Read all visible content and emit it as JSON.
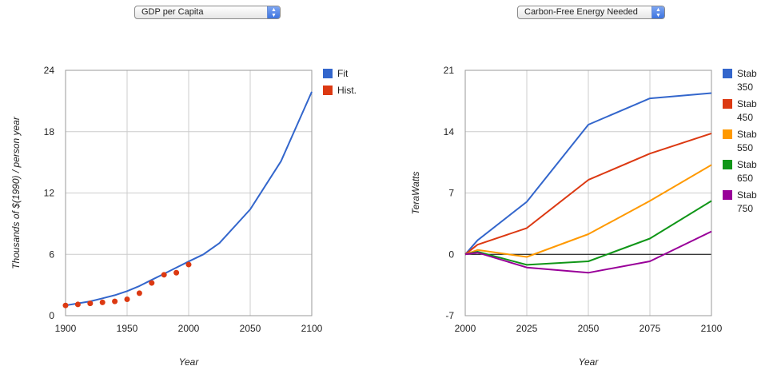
{
  "controls": {
    "left_select": "GDP per Capita",
    "right_select": "Carbon-Free Energy Needed"
  },
  "colors": {
    "blue": "#3366cc",
    "red": "#dc3912",
    "orange": "#ff9900",
    "green": "#109618",
    "purple": "#990099"
  },
  "chart_data": [
    {
      "type": "line",
      "title": "",
      "xlabel": "Year",
      "ylabel": "Thousands of $(1990) / person year",
      "xlim": [
        1900,
        2100
      ],
      "ylim": [
        0,
        24
      ],
      "xticks": [
        "1900",
        "1950",
        "2000",
        "2050",
        "2100"
      ],
      "yticks": [
        "0",
        "6",
        "12",
        "18",
        "24"
      ],
      "grid": true,
      "legend": "right",
      "series": [
        {
          "name": "Fit",
          "style": "line",
          "color": "#3366cc",
          "points": [
            [
              1900,
              1.0
            ],
            [
              1910,
              1.2
            ],
            [
              1920,
              1.4
            ],
            [
              1930,
              1.7
            ],
            [
              1940,
              2.0
            ],
            [
              1950,
              2.4
            ],
            [
              1960,
              2.9
            ],
            [
              1970,
              3.5
            ],
            [
              1980,
              4.1
            ],
            [
              1990,
              4.7
            ],
            [
              2000,
              5.3
            ],
            [
              2012,
              6.0
            ],
            [
              2025,
              7.1
            ],
            [
              2050,
              10.4
            ],
            [
              2075,
              15.1
            ],
            [
              2100,
              21.9
            ]
          ]
        },
        {
          "name": "Hist.",
          "style": "scatter",
          "color": "#dc3912",
          "points": [
            [
              1900,
              1.0
            ],
            [
              1910,
              1.1
            ],
            [
              1920,
              1.2
            ],
            [
              1930,
              1.3
            ],
            [
              1940,
              1.4
            ],
            [
              1950,
              1.6
            ],
            [
              1960,
              2.2
            ],
            [
              1970,
              3.2
            ],
            [
              1980,
              4.0
            ],
            [
              1990,
              4.2
            ],
            [
              2000,
              5.0
            ]
          ]
        }
      ]
    },
    {
      "type": "line",
      "title": "",
      "xlabel": "Year",
      "ylabel": "TeraWatts",
      "xlim": [
        2000,
        2100
      ],
      "ylim": [
        -7,
        21
      ],
      "xticks": [
        "2000",
        "2025",
        "2050",
        "2075",
        "2100"
      ],
      "yticks": [
        "-7",
        "0",
        "7",
        "14",
        "21"
      ],
      "grid": true,
      "legend": "right",
      "series": [
        {
          "name": "Stab 350",
          "legend": [
            "Stab",
            "350"
          ],
          "color": "#3366cc",
          "points": [
            [
              2000,
              0
            ],
            [
              2005,
              1.6
            ],
            [
              2025,
              6.0
            ],
            [
              2050,
              14.8
            ],
            [
              2075,
              17.8
            ],
            [
              2100,
              18.4
            ]
          ]
        },
        {
          "name": "Stab 450",
          "legend": [
            "Stab",
            "450"
          ],
          "color": "#dc3912",
          "points": [
            [
              2000,
              0
            ],
            [
              2005,
              1.1
            ],
            [
              2025,
              3.0
            ],
            [
              2050,
              8.5
            ],
            [
              2075,
              11.5
            ],
            [
              2100,
              13.8
            ]
          ]
        },
        {
          "name": "Stab 550",
          "legend": [
            "Stab",
            "550"
          ],
          "color": "#ff9900",
          "points": [
            [
              2000,
              0
            ],
            [
              2005,
              0.5
            ],
            [
              2025,
              -0.3
            ],
            [
              2050,
              2.3
            ],
            [
              2075,
              6.1
            ],
            [
              2100,
              10.2
            ]
          ]
        },
        {
          "name": "Stab 650",
          "legend": [
            "Stab",
            "650"
          ],
          "color": "#109618",
          "points": [
            [
              2000,
              0
            ],
            [
              2005,
              0.3
            ],
            [
              2025,
              -1.2
            ],
            [
              2050,
              -0.8
            ],
            [
              2075,
              1.8
            ],
            [
              2100,
              6.1
            ]
          ]
        },
        {
          "name": "Stab 750",
          "legend": [
            "Stab",
            "750"
          ],
          "color": "#990099",
          "points": [
            [
              2000,
              0
            ],
            [
              2005,
              0.2
            ],
            [
              2025,
              -1.5
            ],
            [
              2050,
              -2.1
            ],
            [
              2075,
              -0.8
            ],
            [
              2100,
              2.6
            ]
          ]
        }
      ]
    }
  ]
}
